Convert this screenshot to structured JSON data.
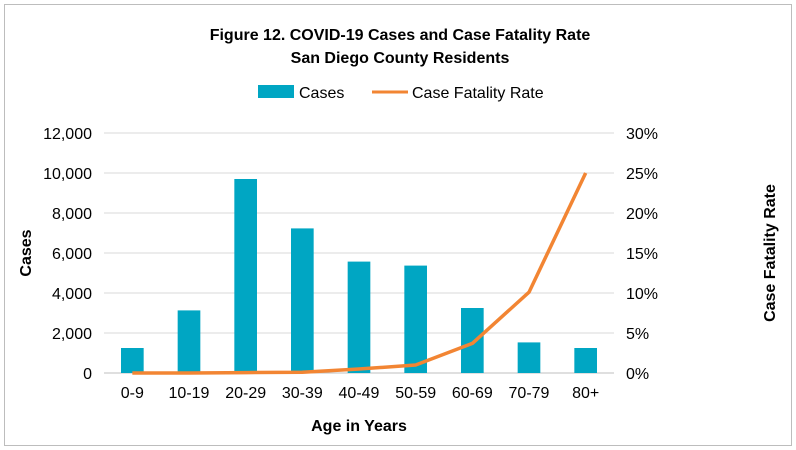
{
  "chart_data": {
    "type": "bar+line",
    "title": "Figure 12. COVID-19 Cases and Case Fatality Rate",
    "subtitle": "San Diego County Residents",
    "xlabel": "Age in Years",
    "ylabel": "Cases",
    "y2label": "Case Fatality Rate",
    "categories": [
      "0-9",
      "10-19",
      "20-29",
      "30-39",
      "40-49",
      "50-59",
      "60-69",
      "70-79",
      "80+"
    ],
    "series": [
      {
        "name": "Cases",
        "type": "bar",
        "axis": "left",
        "color": "#00A6C3",
        "values": [
          1250,
          3130,
          9700,
          7230,
          5570,
          5370,
          3250,
          1530,
          1250
        ]
      },
      {
        "name": "Case Fatality Rate",
        "type": "line",
        "axis": "right",
        "color": "#F28533",
        "values": [
          0.0,
          0.0,
          0.05,
          0.1,
          0.5,
          1.0,
          3.7,
          10.1,
          25.0
        ]
      }
    ],
    "ylim": [
      0,
      12000
    ],
    "y2lim": [
      0,
      30
    ],
    "yticks": [
      "0",
      "2,000",
      "4,000",
      "6,000",
      "8,000",
      "10,000",
      "12,000"
    ],
    "y2ticks": [
      "0%",
      "5%",
      "10%",
      "15%",
      "20%",
      "25%",
      "30%"
    ],
    "grid": true,
    "legend": "top"
  }
}
